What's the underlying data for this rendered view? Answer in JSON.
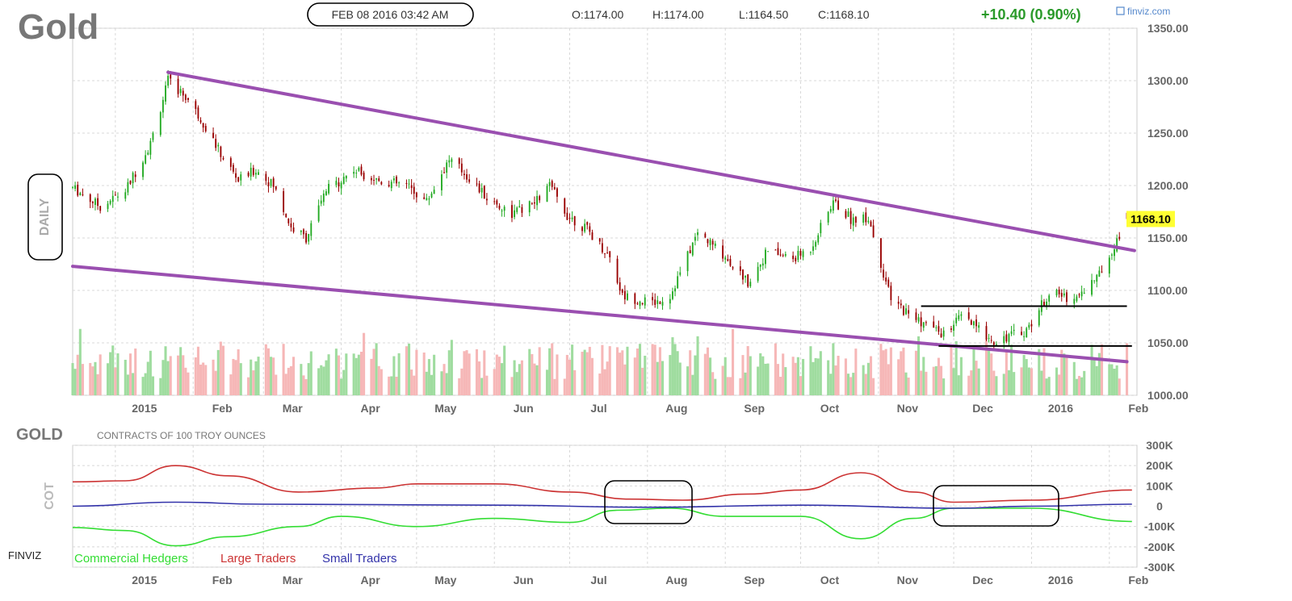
{
  "header": {
    "symbol": "Gold",
    "datetime": "FEB 08 2016 03:42 AM",
    "open": "O:1174.00",
    "high": "H:1174.00",
    "low": "L:1164.50",
    "close": "C:1168.10",
    "change": "+10.40 (0.90%)",
    "brand": "finviz.com",
    "last_price": "1168.10",
    "timeframe": "DAILY"
  },
  "cot": {
    "symbol": "GOLD",
    "subtitle": "CONTRACTS OF 100 TROY OUNCES",
    "side_label": "COT",
    "watermark": "FINVIZ"
  },
  "colors": {
    "up": "#22aa22",
    "down": "#990000",
    "vol_up": "#9fdc9f",
    "vol_down": "#f6b7b7",
    "trendline": "#9a4fb0",
    "commercial": "#33dd33",
    "large": "#cc3333",
    "small": "#3333aa",
    "price_tag_bg": "#ffff33"
  },
  "chart_data": [
    {
      "type": "candlestick",
      "y_ticks": [
        "1350.00",
        "1300.00",
        "1250.00",
        "1200.00",
        "1150.00",
        "1100.00",
        "1050.00",
        "1000.00"
      ],
      "ylim": [
        1000,
        1350
      ],
      "grid": true,
      "x_labels": [
        {
          "label": "2015",
          "date": "2015-01-01"
        },
        {
          "label": "Feb",
          "date": "2015-02-01"
        },
        {
          "label": "Mar",
          "date": "2015-03-01"
        },
        {
          "label": "Apr",
          "date": "2015-04-01"
        },
        {
          "label": "May",
          "date": "2015-05-01"
        },
        {
          "label": "Jun",
          "date": "2015-06-01"
        },
        {
          "label": "Jul",
          "date": "2015-07-01"
        },
        {
          "label": "Aug",
          "date": "2015-08-01"
        },
        {
          "label": "Sep",
          "date": "2015-09-01"
        },
        {
          "label": "Oct",
          "date": "2015-10-01"
        },
        {
          "label": "Nov",
          "date": "2015-11-01"
        },
        {
          "label": "Dec",
          "date": "2015-12-01"
        },
        {
          "label": "2016",
          "date": "2016-01-01"
        },
        {
          "label": "Feb",
          "date": "2016-02-01"
        }
      ],
      "price_path": [
        [
          "2014-12-15",
          1198
        ],
        [
          "2014-12-26",
          1180
        ],
        [
          "2015-01-05",
          1195
        ],
        [
          "2015-01-15",
          1240
        ],
        [
          "2015-01-22",
          1300
        ],
        [
          "2015-01-29",
          1285
        ],
        [
          "2015-02-05",
          1260
        ],
        [
          "2015-02-12",
          1230
        ],
        [
          "2015-02-19",
          1205
        ],
        [
          "2015-02-26",
          1215
        ],
        [
          "2015-03-05",
          1200
        ],
        [
          "2015-03-12",
          1160
        ],
        [
          "2015-03-18",
          1150
        ],
        [
          "2015-03-26",
          1195
        ],
        [
          "2015-04-06",
          1215
        ],
        [
          "2015-04-16",
          1205
        ],
        [
          "2015-04-27",
          1200
        ],
        [
          "2015-05-05",
          1185
        ],
        [
          "2015-05-14",
          1225
        ],
        [
          "2015-05-20",
          1212
        ],
        [
          "2015-05-29",
          1188
        ],
        [
          "2015-06-08",
          1173
        ],
        [
          "2015-06-17",
          1183
        ],
        [
          "2015-06-23",
          1200
        ],
        [
          "2015-06-30",
          1172
        ],
        [
          "2015-07-08",
          1158
        ],
        [
          "2015-07-17",
          1132
        ],
        [
          "2015-07-22",
          1095
        ],
        [
          "2015-08-03",
          1088
        ],
        [
          "2015-08-10",
          1095
        ],
        [
          "2015-08-21",
          1155
        ],
        [
          "2015-08-31",
          1135
        ],
        [
          "2015-09-10",
          1108
        ],
        [
          "2015-09-18",
          1138
        ],
        [
          "2015-09-28",
          1130
        ],
        [
          "2015-10-05",
          1140
        ],
        [
          "2015-10-14",
          1185
        ],
        [
          "2015-10-21",
          1168
        ],
        [
          "2015-10-28",
          1170
        ],
        [
          "2015-11-06",
          1090
        ],
        [
          "2015-11-18",
          1070
        ],
        [
          "2015-11-27",
          1058
        ],
        [
          "2015-12-04",
          1075
        ],
        [
          "2015-12-17",
          1052
        ],
        [
          "2015-12-30",
          1062
        ],
        [
          "2016-01-08",
          1098
        ],
        [
          "2016-01-18",
          1092
        ],
        [
          "2016-01-28",
          1115
        ],
        [
          "2016-02-08",
          1168
        ]
      ],
      "last_candle": {
        "open": 1174.0,
        "high": 1174.0,
        "low": 1164.5,
        "close": 1168.1
      },
      "trendlines": [
        {
          "from": [
            "2015-01-22",
            1308
          ],
          "to": [
            "2016-02-11",
            1138
          ]
        },
        {
          "from": [
            "2014-12-15",
            1123
          ],
          "to": [
            "2016-02-08",
            1032
          ]
        }
      ],
      "range_lines": [
        {
          "from": "2015-11-18",
          "to": "2016-02-08",
          "value": 1085
        },
        {
          "from": "2015-11-25",
          "to": "2016-02-10",
          "value": 1047
        }
      ]
    },
    {
      "type": "line",
      "title": "CONTRACTS OF 100 TROY OUNCES",
      "y_ticks": [
        "300K",
        "200K",
        "100K",
        "0",
        "-100K",
        "-200K",
        "-300K"
      ],
      "ylim": [
        -300000,
        300000
      ],
      "x_labels": [
        "2015",
        "Feb",
        "Mar",
        "Apr",
        "May",
        "Jun",
        "Jul",
        "Aug",
        "Sep",
        "Oct",
        "Nov",
        "Dec",
        "2016",
        "Feb"
      ],
      "series": [
        {
          "name": "Commercial Hedgers",
          "points": [
            [
              "2014-12-15",
              -105000
            ],
            [
              "2015-01-05",
              -120000
            ],
            [
              "2015-01-25",
              -195000
            ],
            [
              "2015-02-15",
              -150000
            ],
            [
              "2015-03-15",
              -100000
            ],
            [
              "2015-04-01",
              -50000
            ],
            [
              "2015-05-01",
              -100000
            ],
            [
              "2015-06-01",
              -60000
            ],
            [
              "2015-07-01",
              -80000
            ],
            [
              "2015-07-20",
              -20000
            ],
            [
              "2015-08-10",
              -10000
            ],
            [
              "2015-09-01",
              -50000
            ],
            [
              "2015-10-01",
              -50000
            ],
            [
              "2015-10-25",
              -160000
            ],
            [
              "2015-11-15",
              -60000
            ],
            [
              "2015-12-01",
              -10000
            ],
            [
              "2016-01-01",
              -10000
            ],
            [
              "2016-02-10",
              -75000
            ]
          ]
        },
        {
          "name": "Large Traders",
          "points": [
            [
              "2014-12-15",
              120000
            ],
            [
              "2015-01-05",
              125000
            ],
            [
              "2015-01-25",
              200000
            ],
            [
              "2015-02-15",
              150000
            ],
            [
              "2015-03-15",
              70000
            ],
            [
              "2015-04-15",
              90000
            ],
            [
              "2015-05-01",
              110000
            ],
            [
              "2015-06-01",
              110000
            ],
            [
              "2015-07-01",
              70000
            ],
            [
              "2015-07-25",
              35000
            ],
            [
              "2015-08-15",
              30000
            ],
            [
              "2015-09-10",
              60000
            ],
            [
              "2015-10-01",
              80000
            ],
            [
              "2015-10-25",
              165000
            ],
            [
              "2015-11-15",
              70000
            ],
            [
              "2015-12-01",
              20000
            ],
            [
              "2016-01-01",
              30000
            ],
            [
              "2016-02-10",
              80000
            ]
          ]
        },
        {
          "name": "Small Traders",
          "points": [
            [
              "2014-12-15",
              0
            ],
            [
              "2015-01-25",
              20000
            ],
            [
              "2015-03-01",
              10000
            ],
            [
              "2015-06-01",
              5000
            ],
            [
              "2015-08-01",
              -5000
            ],
            [
              "2015-10-01",
              5000
            ],
            [
              "2015-12-01",
              -10000
            ],
            [
              "2016-01-01",
              0
            ],
            [
              "2016-02-10",
              10000
            ]
          ]
        }
      ]
    }
  ]
}
